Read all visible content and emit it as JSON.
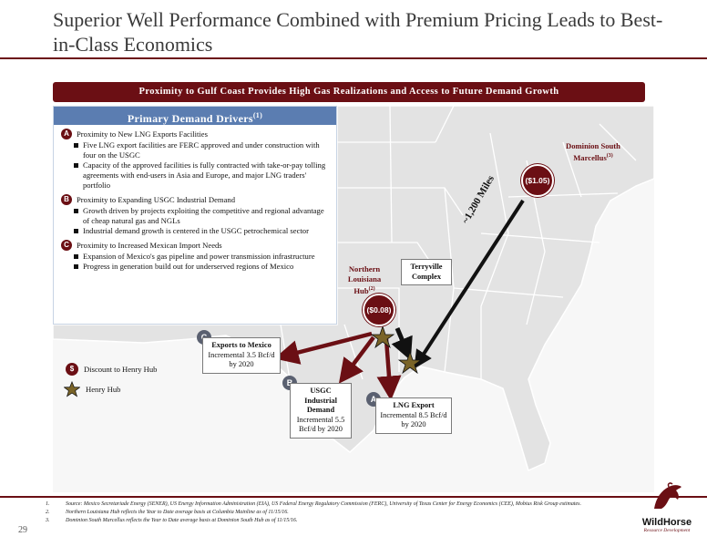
{
  "title": "Superior Well Performance Combined with Premium Pricing Leads to Best-in-Class Economics",
  "banner": "Proximity to Gulf Coast Provides High Gas Realizations and Access to Future Demand Growth",
  "drivers": {
    "heading": "Primary Demand Drivers",
    "heading_sup": "(1)",
    "items": [
      {
        "letter": "A",
        "title": "Proximity to New LNG Exports Facilities",
        "bullets": [
          "Five LNG export facilities are FERC approved and under construction with four on the USGC",
          "Capacity of the approved facilities is fully contracted with take-or-pay tolling agreements with end-users in Asia and Europe, and major LNG traders' portfolio"
        ]
      },
      {
        "letter": "B",
        "title": "Proximity to Expanding USGC Industrial Demand",
        "bullets": [
          "Growth driven by projects exploiting the competitive and regional advantage of cheap natural gas and NGLs",
          "Industrial demand growth is centered in the USGC petrochemical sector"
        ]
      },
      {
        "letter": "C",
        "title": "Proximity to Increased Mexican Import Needs",
        "bullets": [
          "Expansion of Mexico's gas pipeline and power transmission infrastructure",
          "Progress in generation build out for underserved regions of Mexico"
        ]
      }
    ]
  },
  "map": {
    "dominion_label": "Dominion South Marcellus",
    "dominion_sup": "(3)",
    "dominion_price": "($1.05)",
    "distance": "~1,200 Miles",
    "terryville": "Terryville Complex",
    "nla_label": "Northern Louisiana Hub",
    "nla_sup": "(2)",
    "nla_price": "($0.08)",
    "mexico": {
      "letter": "C",
      "title": "Exports to Mexico",
      "detail": "Incremental 3.5 Bcf/d by 2020"
    },
    "industrial": {
      "letter": "B",
      "title": "USGC Industrial Demand",
      "detail": "Incremental 5.5 Bcf/d by 2020"
    },
    "lng": {
      "letter": "A",
      "title": "LNG Export",
      "detail": "Incremental 8.5 Bcf/d by 2020"
    }
  },
  "legend": {
    "dollar_symbol": "$",
    "discount": "Discount to Henry Hub",
    "henry": "Henry Hub"
  },
  "footnotes": [
    {
      "num": "1.",
      "text": "Source: Mexico Secretariade Energy (SENER), US Energy Information Administration (EIA), US Federal Energy Regulatory Commission (FERC), University of Texas Center for Energy Economics (CEE), Mobius Risk Group estimates."
    },
    {
      "num": "2.",
      "text": "Northern Louisiana Hub reflects the Year to Date average basis at Columbia Mainline as of 11/15/16."
    },
    {
      "num": "3.",
      "text": "Dominion South Marcellus reflects the Year to Date average basis at Dominion South Hub as of 11/15/16."
    }
  ],
  "page_number": "29",
  "logo": {
    "name": "WildHorse",
    "sub": "Resource Development"
  },
  "colors": {
    "accent": "#6b0f14",
    "header_blue": "#5b7db1",
    "star": "#7a6428"
  }
}
